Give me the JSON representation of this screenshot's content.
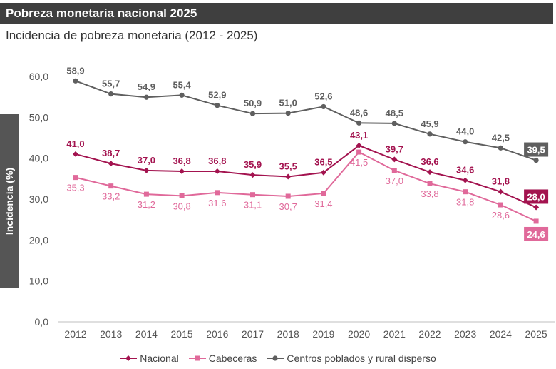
{
  "title": "Pobreza monetaria nacional 2025",
  "subtitle": "Incidencia de pobreza monetaria (2012 - 2025)",
  "chart_data": {
    "type": "line",
    "ylabel": "Incidencia (%)",
    "ylim": [
      0,
      60
    ],
    "yticks": [
      "0,0",
      "10,0",
      "20,0",
      "30,0",
      "40,0",
      "50,0",
      "60,0"
    ],
    "categories": [
      "2012",
      "2013",
      "2014",
      "2015",
      "2016",
      "2017",
      "2018",
      "2019",
      "2020",
      "2021",
      "2022",
      "2023",
      "2024",
      "2025"
    ],
    "legend": "bottom",
    "series": [
      {
        "name": "Nacional",
        "color": "#a3134f",
        "marker": "diamond",
        "values": [
          41.0,
          38.7,
          37.0,
          36.8,
          36.8,
          35.9,
          35.5,
          36.5,
          43.1,
          39.7,
          36.6,
          34.6,
          31.8,
          28.0
        ],
        "labels": [
          "41,0",
          "38,7",
          "37,0",
          "36,8",
          "36,8",
          "35,9",
          "35,5",
          "36,5",
          "43,1",
          "39,7",
          "36,6",
          "34,6",
          "31,8",
          "28,0"
        ]
      },
      {
        "name": "Cabeceras",
        "color": "#e0699a",
        "marker": "square",
        "values": [
          35.3,
          33.2,
          31.2,
          30.8,
          31.6,
          31.1,
          30.7,
          31.4,
          41.5,
          37.0,
          33.8,
          31.8,
          28.6,
          24.6
        ],
        "labels": [
          "35,3",
          "33,2",
          "31,2",
          "30,8",
          "31,6",
          "31,1",
          "30,7",
          "31,4",
          "41,5",
          "37,0",
          "33,8",
          "31,8",
          "28,6",
          "24,6"
        ]
      },
      {
        "name": "Centros poblados y rural disperso",
        "color": "#5f5f5f",
        "marker": "circle",
        "values": [
          58.9,
          55.7,
          54.9,
          55.4,
          52.9,
          50.9,
          51.0,
          52.6,
          48.6,
          48.5,
          45.9,
          44.0,
          42.5,
          39.5
        ],
        "labels": [
          "58,9",
          "55,7",
          "54,9",
          "55,4",
          "52,9",
          "50,9",
          "51,0",
          "52,6",
          "48,6",
          "48,5",
          "45,9",
          "44,0",
          "42,5",
          "39,5"
        ]
      }
    ]
  }
}
